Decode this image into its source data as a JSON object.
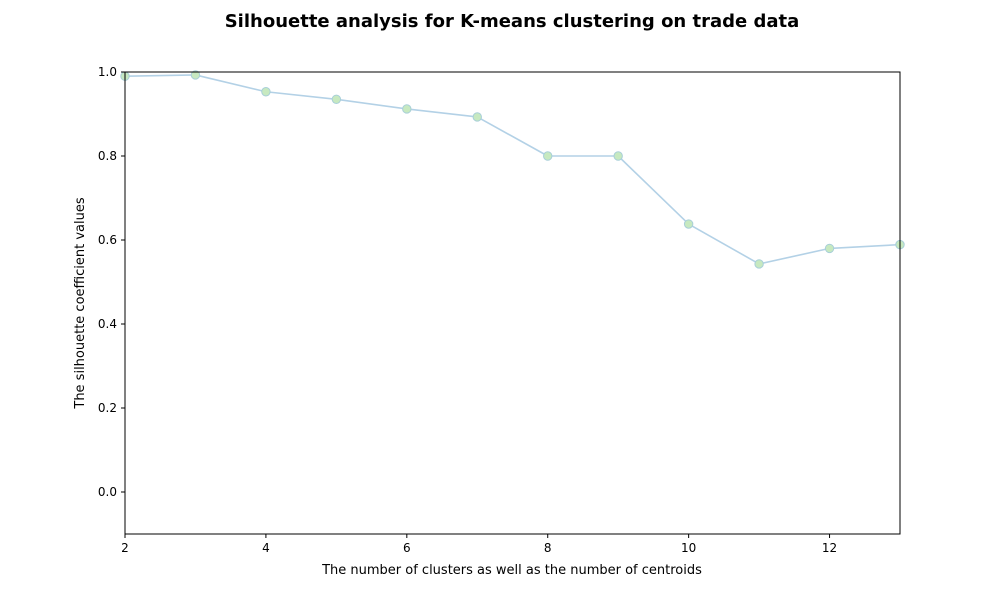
{
  "chart_data": {
    "type": "line",
    "title": "Silhouette analysis for K-means clustering on trade data",
    "xlabel": "The number of clusters as well as the number of centroids",
    "ylabel": "The silhouette coefficient values",
    "xlim": [
      2,
      13
    ],
    "ylim": [
      -0.1,
      1.0
    ],
    "xticks": [
      2,
      4,
      6,
      8,
      10,
      12
    ],
    "xtick_labels": [
      "2",
      "4",
      "6",
      "8",
      "10",
      "12"
    ],
    "yticks": [
      0.0,
      0.2,
      0.4,
      0.6,
      0.8,
      1.0
    ],
    "ytick_labels": [
      "0.0",
      "0.2",
      "0.4",
      "0.6",
      "0.8",
      "1.0"
    ],
    "grid": false,
    "x": [
      2,
      3,
      4,
      5,
      6,
      7,
      8,
      9,
      10,
      11,
      12,
      13
    ],
    "series": [
      {
        "values": [
          0.99,
          0.993,
          0.953,
          0.935,
          0.912,
          0.893,
          0.8,
          0.8,
          0.638,
          0.543,
          0.58,
          0.589
        ],
        "line_color": "#b3d1e6",
        "marker_fill": "#c7e9c0",
        "marker_edge": "#a8cfd8"
      }
    ]
  }
}
